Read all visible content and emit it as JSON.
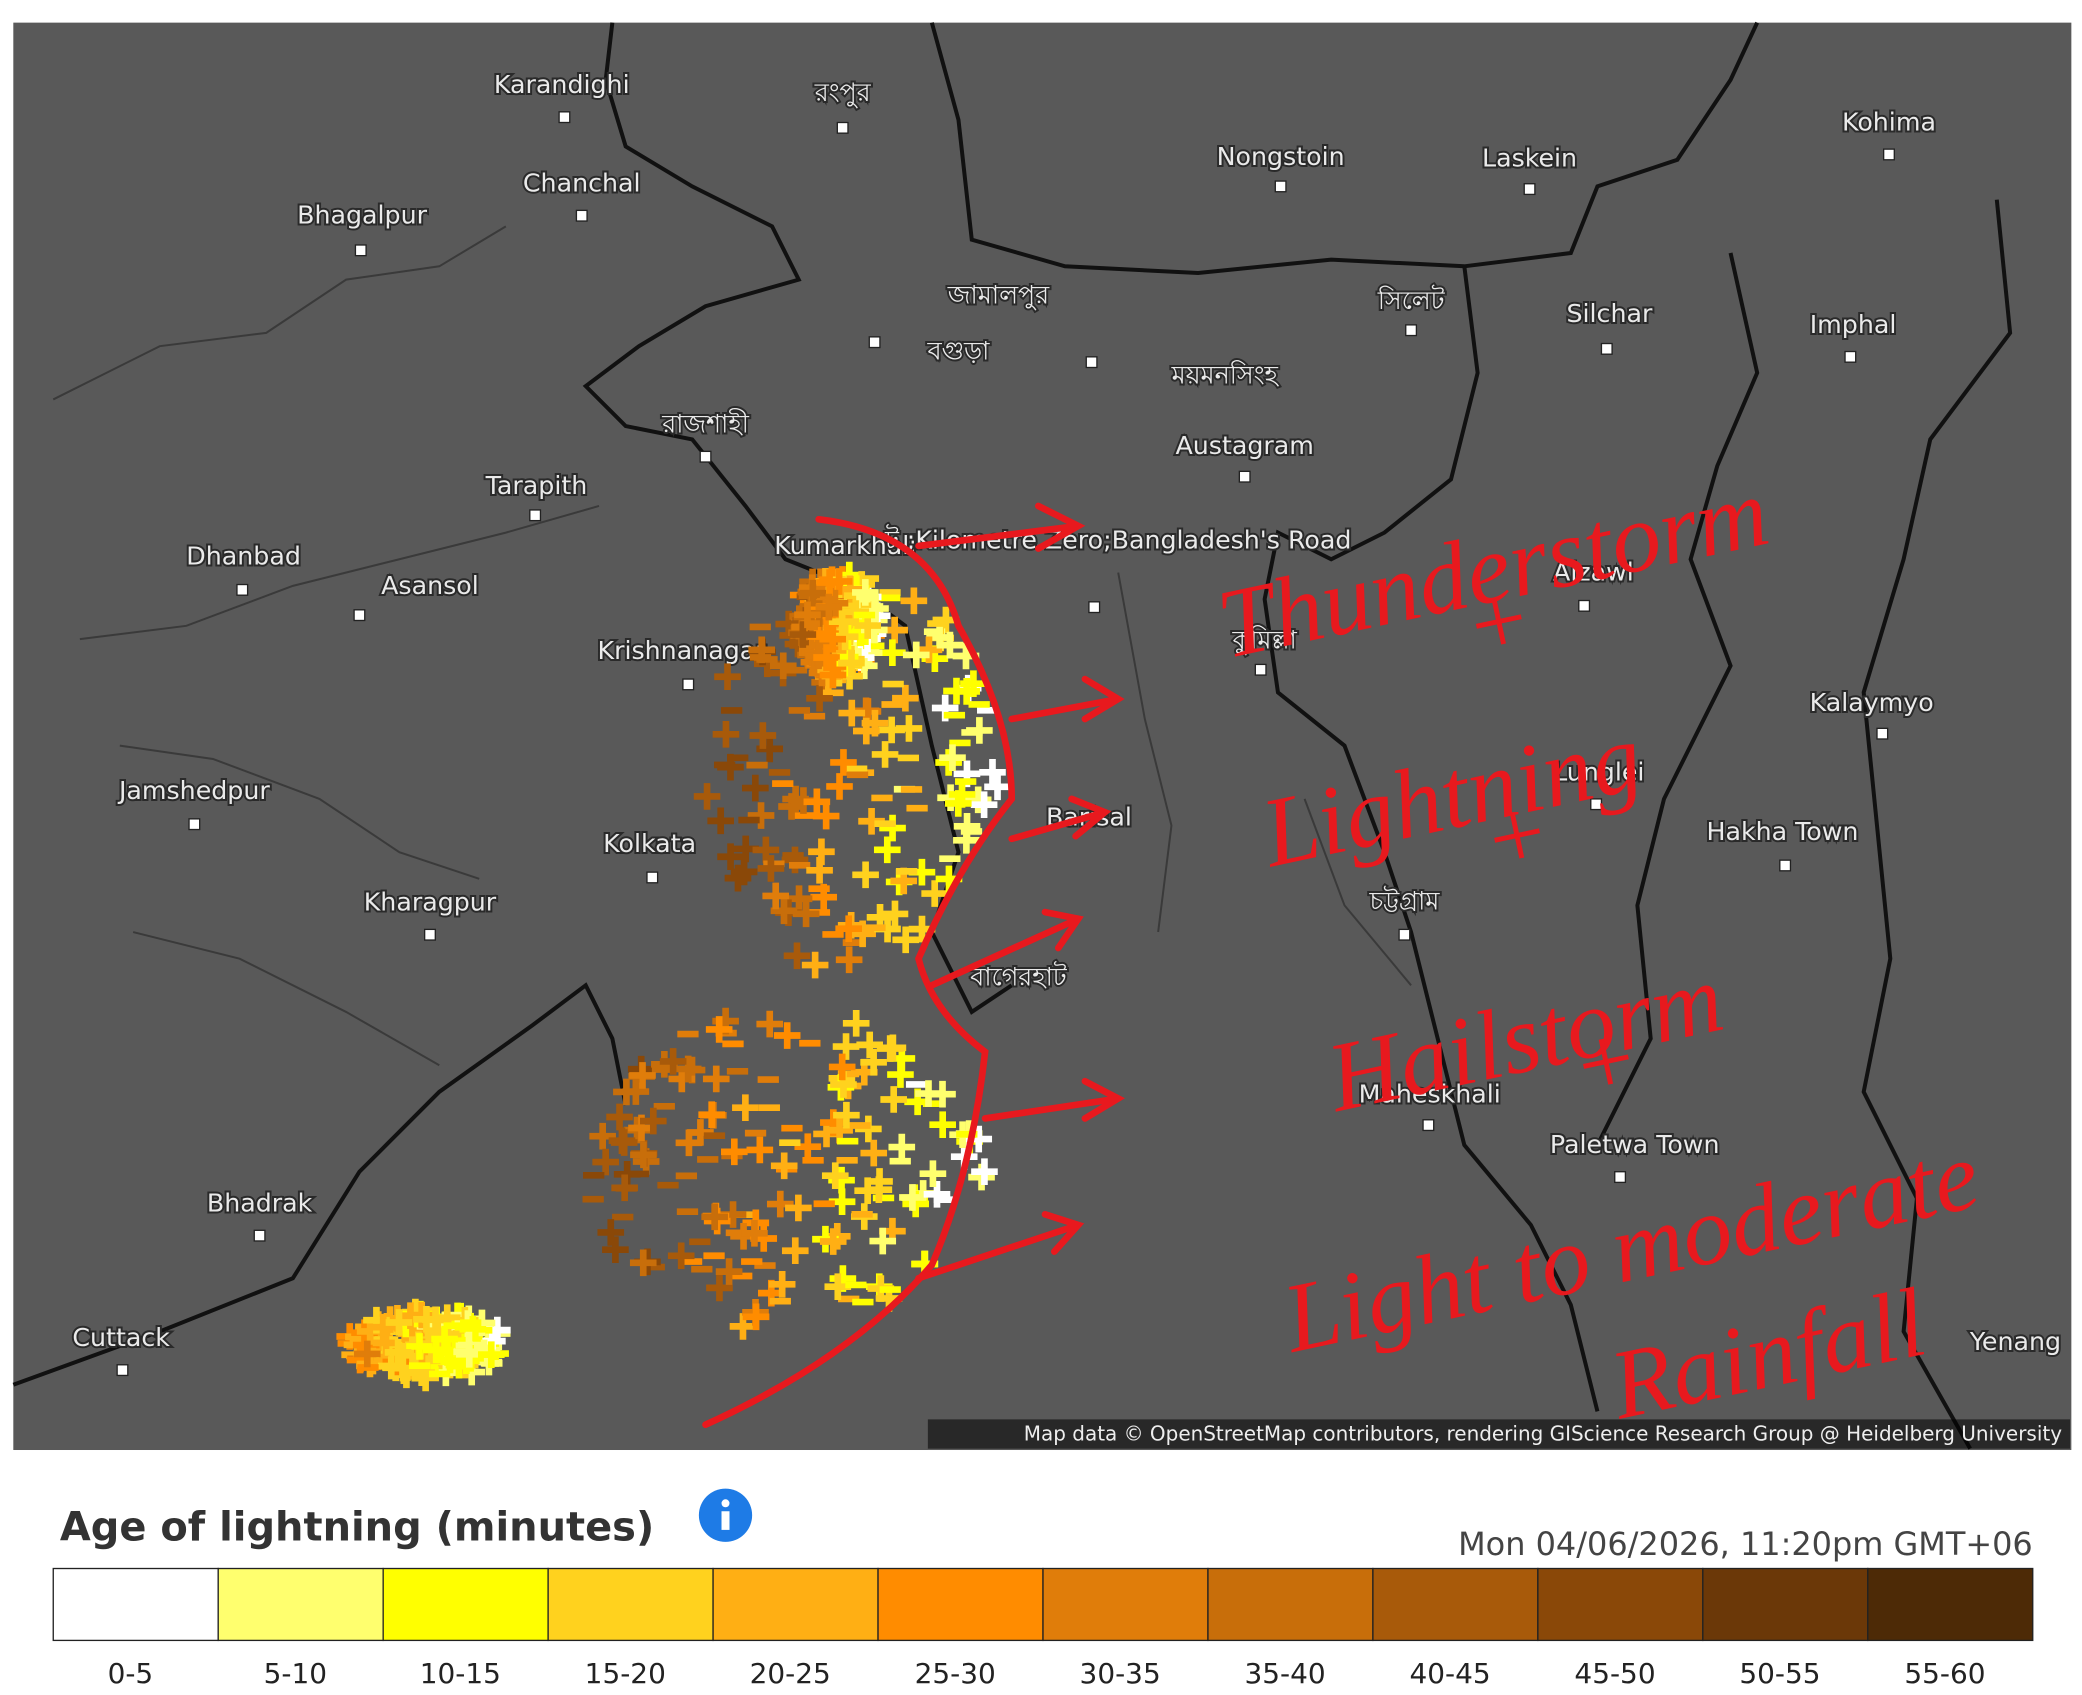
{
  "map": {
    "places": [
      "Karandighi",
      "Chanchal",
      "Bhagalpur",
      "রংপুর",
      "Nongstoin",
      "Laskein",
      "Kohima",
      "জামালপুর",
      "বগুড়া",
      "ময়মনসিংহ",
      "সিলেট",
      "Silchar",
      "Imphal",
      "রাজশাহী",
      "Austagram",
      "Tarapith",
      "Kumarkhali",
      "ট ;Kilometre Zero;Bangladesh's Road",
      "Dhanbad",
      "Asansol",
      "Aizawl",
      "Krishnanagar",
      "কুমিল্লা",
      "Kalaymyo",
      "Jamshedpur",
      "Lunglei",
      "Kolkata",
      "Barisal",
      "Hakha Town",
      "Kharagpur",
      "চট্টগ্রাম",
      "বাগেরহাট",
      "Maheskhali",
      "Paletwa Town",
      "Bhadrak",
      "Cuttack",
      "Yenang"
    ],
    "annotation": [
      "Thunderstorm",
      "+",
      "Lightning",
      "+",
      "Hailstorm",
      "+",
      "Light to moderate",
      "Rainfall"
    ],
    "attribution": "Map data © OpenStreetMap contributors, rendering GIScience Research Group @ Heidelberg University"
  },
  "legend": {
    "title": "Age of lightning (minutes)",
    "timestamp": "Mon 04/06/2026, 11:20pm GMT+06",
    "bins": [
      {
        "label": "0-5",
        "color": "#ffffff"
      },
      {
        "label": "5-10",
        "color": "#ffff6e"
      },
      {
        "label": "10-15",
        "color": "#ffff00"
      },
      {
        "label": "15-20",
        "color": "#ffd21e"
      },
      {
        "label": "20-25",
        "color": "#ffaf14"
      },
      {
        "label": "25-30",
        "color": "#ff8c00"
      },
      {
        "label": "30-35",
        "color": "#e07d0a"
      },
      {
        "label": "35-40",
        "color": "#c86e0a"
      },
      {
        "label": "40-45",
        "color": "#a85a0a"
      },
      {
        "label": "45-50",
        "color": "#8a4808"
      },
      {
        "label": "50-55",
        "color": "#6b3808"
      },
      {
        "label": "55-60",
        "color": "#4d2a06"
      }
    ]
  }
}
